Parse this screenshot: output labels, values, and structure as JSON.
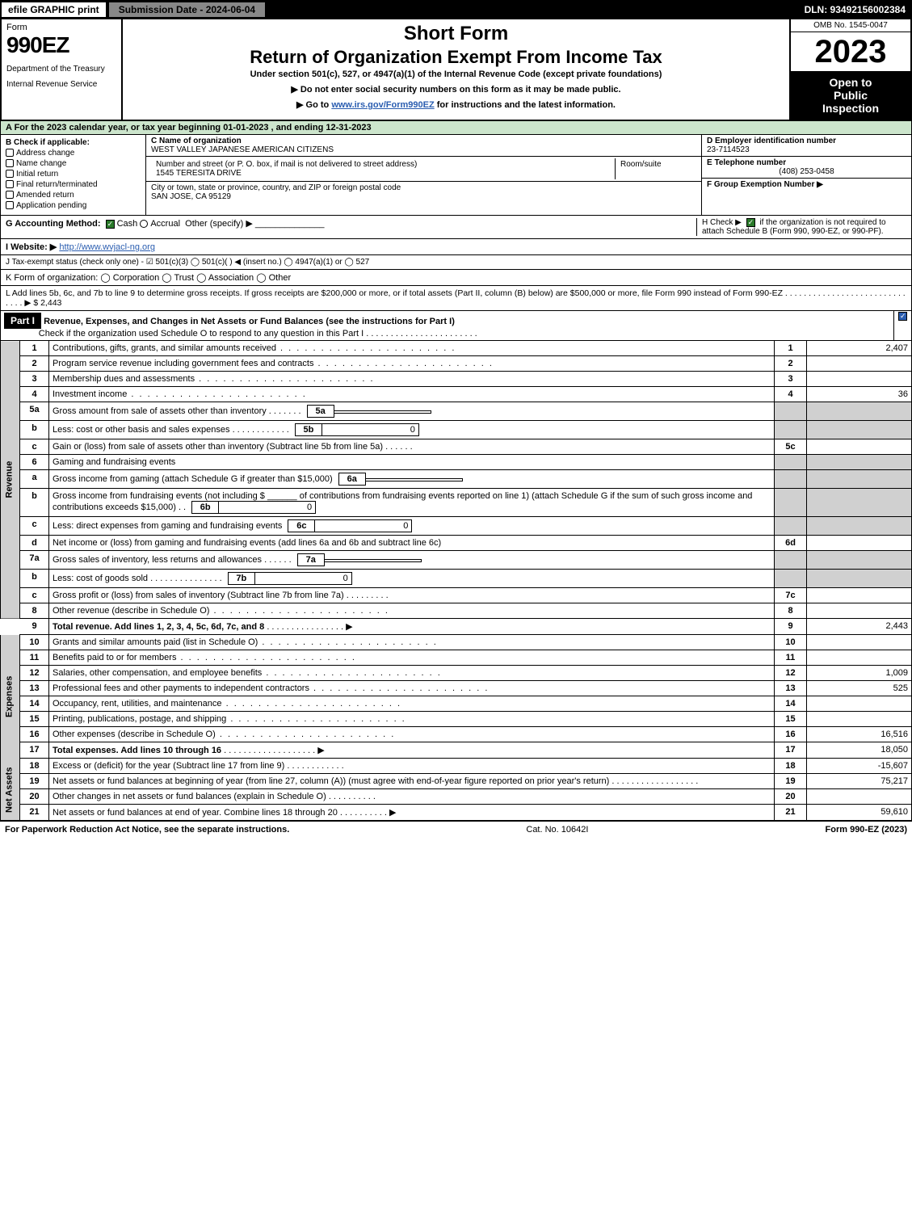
{
  "topbar": {
    "efile": "efile GRAPHIC print",
    "submission": "Submission Date - 2024-06-04",
    "dln": "DLN: 93492156002384"
  },
  "header": {
    "form_label": "Form",
    "form_number": "990EZ",
    "dept1": "Department of the Treasury",
    "dept2": "Internal Revenue Service",
    "short_form": "Short Form",
    "title": "Return of Organization Exempt From Income Tax",
    "subtitle": "Under section 501(c), 527, or 4947(a)(1) of the Internal Revenue Code (except private foundations)",
    "note1": "▶ Do not enter social security numbers on this form as it may be made public.",
    "note2_pre": "▶ Go to ",
    "note2_link": "www.irs.gov/Form990EZ",
    "note2_post": " for instructions and the latest information.",
    "omb": "OMB No. 1545-0047",
    "year": "2023",
    "open1": "Open to",
    "open2": "Public",
    "open3": "Inspection"
  },
  "section_a": "A  For the 2023 calendar year, or tax year beginning 01-01-2023 , and ending 12-31-2023",
  "section_b": {
    "title": "B  Check if applicable:",
    "items": [
      "Address change",
      "Name change",
      "Initial return",
      "Final return/terminated",
      "Amended return",
      "Application pending"
    ]
  },
  "section_c": {
    "label": "C Name of organization",
    "name": "WEST VALLEY JAPANESE AMERICAN CITIZENS",
    "street_label": "Number and street (or P. O. box, if mail is not delivered to street address)",
    "street": "1545 TERESITA DRIVE",
    "room_label": "Room/suite",
    "city_label": "City or town, state or province, country, and ZIP or foreign postal code",
    "city": "SAN JOSE, CA  95129"
  },
  "section_d": {
    "label": "D Employer identification number",
    "value": "23-7114523"
  },
  "section_e": {
    "label": "E Telephone number",
    "value": "(408) 253-0458"
  },
  "section_f": {
    "label": "F Group Exemption Number  ▶",
    "value": ""
  },
  "section_g": {
    "label": "G Accounting Method:",
    "cash": "Cash",
    "accrual": "Accrual",
    "other": "Other (specify) ▶"
  },
  "section_h": {
    "text1": "H  Check ▶",
    "text2": "if the organization is not required to attach Schedule B (Form 990, 990-EZ, or 990-PF)."
  },
  "section_i": {
    "label": "I Website: ▶",
    "value": "http://www.wvjacl-ng.org"
  },
  "section_j": "J Tax-exempt status (check only one) - ☑ 501(c)(3)  ◯ 501(c)(  ) ◀ (insert no.)  ◯ 4947(a)(1) or  ◯ 527",
  "section_k": "K Form of organization:  ◯ Corporation  ◯ Trust  ◯ Association  ◯ Other",
  "section_l": {
    "text": "L Add lines 5b, 6c, and 7b to line 9 to determine gross receipts. If gross receipts are $200,000 or more, or if total assets (Part II, column (B) below) are $500,000 or more, file Form 990 instead of Form 990-EZ  .   .   .   .   .   .   .   .   .   .   .   .   .   .   .   .   .   .   .   .   .   .   .   .   .   .   .   .   .   .   ▶ $",
    "amount": "2,443"
  },
  "part1": {
    "label": "Part I",
    "title": "Revenue, Expenses, and Changes in Net Assets or Fund Balances (see the instructions for Part I)",
    "check_note": "Check if the organization used Schedule O to respond to any question in this Part I"
  },
  "sidebar": {
    "revenue": "Revenue",
    "expenses": "Expenses",
    "netassets": "Net Assets"
  },
  "lines": {
    "l1": {
      "num": "1",
      "desc": "Contributions, gifts, grants, and similar amounts received",
      "code": "1",
      "amt": "2,407"
    },
    "l2": {
      "num": "2",
      "desc": "Program service revenue including government fees and contracts",
      "code": "2",
      "amt": ""
    },
    "l3": {
      "num": "3",
      "desc": "Membership dues and assessments",
      "code": "3",
      "amt": ""
    },
    "l4": {
      "num": "4",
      "desc": "Investment income",
      "code": "4",
      "amt": "36"
    },
    "l5a": {
      "num": "5a",
      "desc": "Gross amount from sale of assets other than inventory",
      "sub": "5a",
      "subval": ""
    },
    "l5b": {
      "num": "b",
      "desc": "Less: cost or other basis and sales expenses",
      "sub": "5b",
      "subval": "0"
    },
    "l5c": {
      "num": "c",
      "desc": "Gain or (loss) from sale of assets other than inventory (Subtract line 5b from line 5a)",
      "code": "5c",
      "amt": ""
    },
    "l6": {
      "num": "6",
      "desc": "Gaming and fundraising events"
    },
    "l6a": {
      "num": "a",
      "desc": "Gross income from gaming (attach Schedule G if greater than $15,000)",
      "sub": "6a",
      "subval": ""
    },
    "l6b": {
      "num": "b",
      "desc1": "Gross income from fundraising events (not including $",
      "desc2": "of contributions from fundraising events reported on line 1) (attach Schedule G if the sum of such gross income and contributions exceeds $15,000)",
      "sub": "6b",
      "subval": "0"
    },
    "l6c": {
      "num": "c",
      "desc": "Less: direct expenses from gaming and fundraising events",
      "sub": "6c",
      "subval": "0"
    },
    "l6d": {
      "num": "d",
      "desc": "Net income or (loss) from gaming and fundraising events (add lines 6a and 6b and subtract line 6c)",
      "code": "6d",
      "amt": ""
    },
    "l7a": {
      "num": "7a",
      "desc": "Gross sales of inventory, less returns and allowances",
      "sub": "7a",
      "subval": ""
    },
    "l7b": {
      "num": "b",
      "desc": "Less: cost of goods sold",
      "sub": "7b",
      "subval": "0"
    },
    "l7c": {
      "num": "c",
      "desc": "Gross profit or (loss) from sales of inventory (Subtract line 7b from line 7a)",
      "code": "7c",
      "amt": ""
    },
    "l8": {
      "num": "8",
      "desc": "Other revenue (describe in Schedule O)",
      "code": "8",
      "amt": ""
    },
    "l9": {
      "num": "9",
      "desc": "Total revenue. Add lines 1, 2, 3, 4, 5c, 6d, 7c, and 8",
      "code": "9",
      "amt": "2,443"
    },
    "l10": {
      "num": "10",
      "desc": "Grants and similar amounts paid (list in Schedule O)",
      "code": "10",
      "amt": ""
    },
    "l11": {
      "num": "11",
      "desc": "Benefits paid to or for members",
      "code": "11",
      "amt": ""
    },
    "l12": {
      "num": "12",
      "desc": "Salaries, other compensation, and employee benefits",
      "code": "12",
      "amt": "1,009"
    },
    "l13": {
      "num": "13",
      "desc": "Professional fees and other payments to independent contractors",
      "code": "13",
      "amt": "525"
    },
    "l14": {
      "num": "14",
      "desc": "Occupancy, rent, utilities, and maintenance",
      "code": "14",
      "amt": ""
    },
    "l15": {
      "num": "15",
      "desc": "Printing, publications, postage, and shipping",
      "code": "15",
      "amt": ""
    },
    "l16": {
      "num": "16",
      "desc": "Other expenses (describe in Schedule O)",
      "code": "16",
      "amt": "16,516"
    },
    "l17": {
      "num": "17",
      "desc": "Total expenses. Add lines 10 through 16",
      "code": "17",
      "amt": "18,050"
    },
    "l18": {
      "num": "18",
      "desc": "Excess or (deficit) for the year (Subtract line 17 from line 9)",
      "code": "18",
      "amt": "-15,607"
    },
    "l19": {
      "num": "19",
      "desc": "Net assets or fund balances at beginning of year (from line 27, column (A)) (must agree with end-of-year figure reported on prior year's return)",
      "code": "19",
      "amt": "75,217"
    },
    "l20": {
      "num": "20",
      "desc": "Other changes in net assets or fund balances (explain in Schedule O)",
      "code": "20",
      "amt": ""
    },
    "l21": {
      "num": "21",
      "desc": "Net assets or fund balances at end of year. Combine lines 18 through 20",
      "code": "21",
      "amt": "59,610"
    }
  },
  "footer": {
    "left": "For Paperwork Reduction Act Notice, see the separate instructions.",
    "mid": "Cat. No. 10642I",
    "right": "Form 990-EZ (2023)"
  }
}
